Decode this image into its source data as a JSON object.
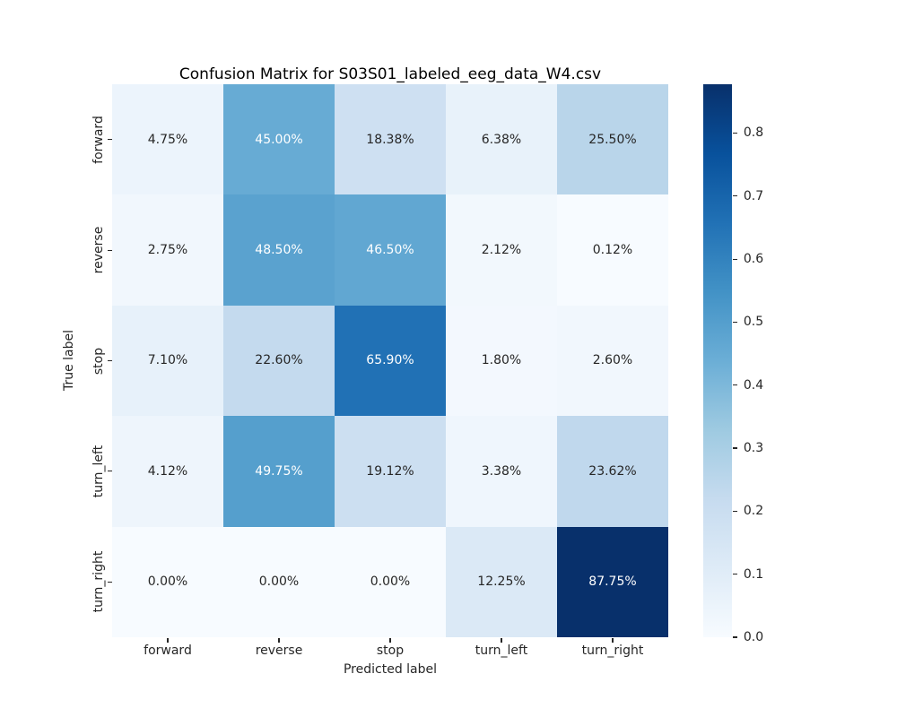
{
  "chart_data": {
    "type": "heatmap",
    "title": "Confusion Matrix for S03S01_labeled_eeg_data_W4.csv",
    "xlabel": "Predicted label",
    "ylabel": "True label",
    "x_categories": [
      "forward",
      "reverse",
      "stop",
      "turn_left",
      "turn_right"
    ],
    "y_categories": [
      "forward",
      "reverse",
      "stop",
      "turn_left",
      "turn_right"
    ],
    "values_percent": [
      [
        4.75,
        45.0,
        18.38,
        6.38,
        25.5
      ],
      [
        2.75,
        48.5,
        46.5,
        2.12,
        0.12
      ],
      [
        7.1,
        22.6,
        65.9,
        1.8,
        2.6
      ],
      [
        4.12,
        49.75,
        19.12,
        3.38,
        23.62
      ],
      [
        0.0,
        0.0,
        0.0,
        12.25,
        87.75
      ]
    ],
    "cell_label_suffix": "%",
    "cell_label_decimals": 2,
    "vmin": 0.0,
    "vmax": 0.8775,
    "colorbar_tick_labels": [
      "0.0",
      "0.1",
      "0.2",
      "0.3",
      "0.4",
      "0.5",
      "0.6",
      "0.7",
      "0.8"
    ],
    "colormap": {
      "name": "Blues",
      "stops": [
        "#f7fbff",
        "#deebf7",
        "#c6dbef",
        "#9ecae1",
        "#6baed6",
        "#4292c6",
        "#2171b5",
        "#08519c",
        "#08306b"
      ]
    },
    "annotation_colors": {
      "dark_text": "#262626",
      "light_text": "#ffffff"
    },
    "grid": false,
    "legend_position": "right-colorbar"
  }
}
